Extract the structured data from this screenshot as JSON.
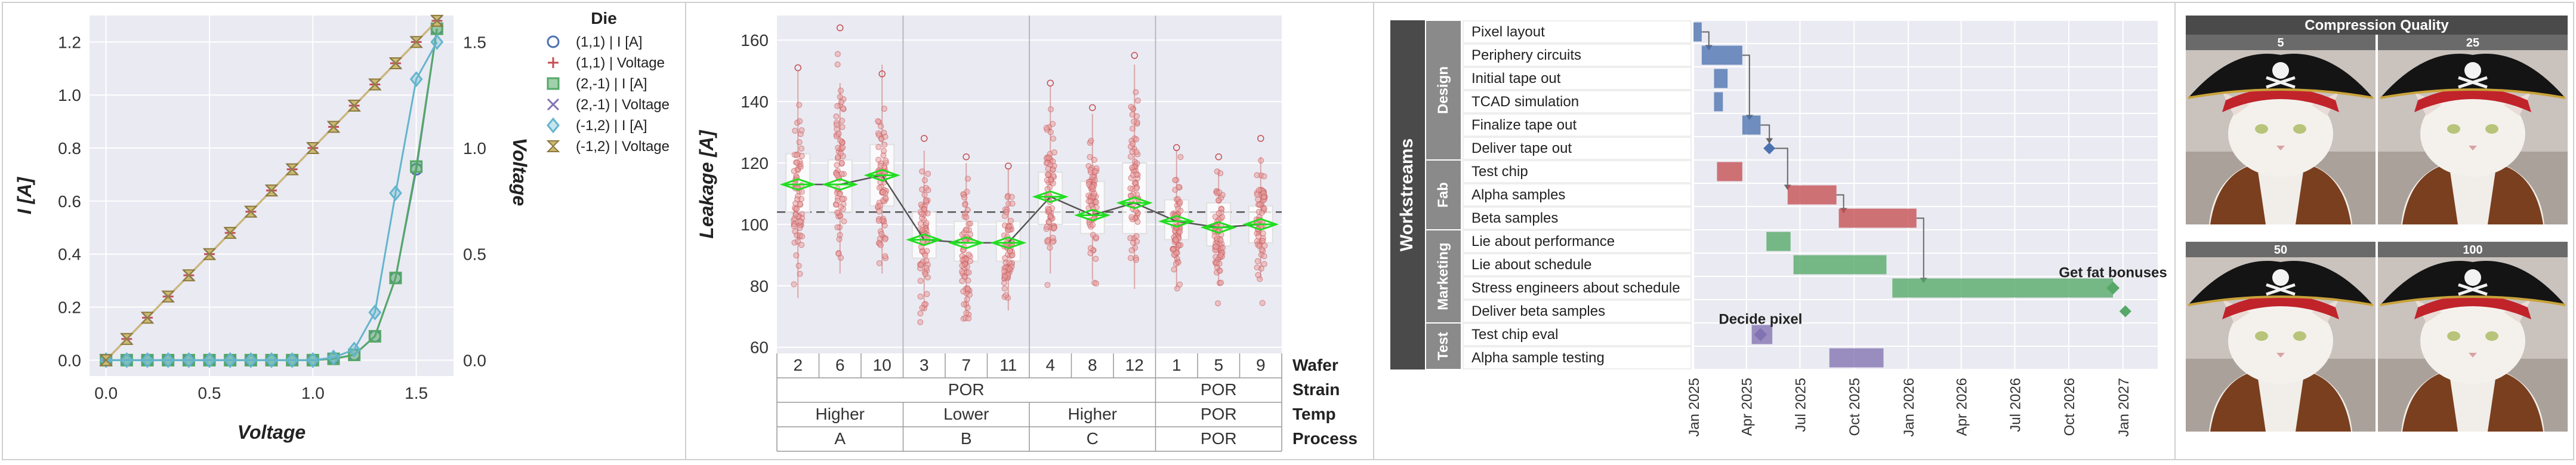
{
  "chart_data": [
    {
      "type": "line",
      "title": "",
      "xlabel": "Voltage",
      "ylabel": "I [A]",
      "y2label": "Voltage",
      "xlim": [
        -0.08,
        1.68
      ],
      "ylim": [
        -0.06,
        1.3
      ],
      "y2lim": [
        -0.075,
        1.625
      ],
      "xticks": [
        "0.0",
        "0.5",
        "1.0",
        "1.5"
      ],
      "yticks": [
        "0.0",
        "0.2",
        "0.4",
        "0.6",
        "0.8",
        "1.0",
        "1.2"
      ],
      "y2ticks": [
        "0.0",
        "0.5",
        "1.0",
        "1.5"
      ],
      "legend_title": "Die",
      "legend_position": "outside-right",
      "x": [
        0,
        0.1,
        0.2,
        0.3,
        0.4,
        0.5,
        0.6,
        0.7,
        0.8,
        0.9,
        1.0,
        1.1,
        1.2,
        1.3,
        1.4,
        1.5,
        1.6
      ],
      "series": [
        {
          "name": "(1,1) | I [A]",
          "axis": "left",
          "marker": "circle",
          "color": "#4c72b0",
          "values": [
            0,
            0,
            0,
            0,
            0,
            0,
            0,
            0,
            0,
            0,
            0,
            0.005,
            0.02,
            0.09,
            0.31,
            0.72,
            1.25
          ]
        },
        {
          "name": "(1,1) | Voltage",
          "axis": "right",
          "marker": "plus",
          "color": "#c44e52",
          "values": [
            0,
            0.1,
            0.2,
            0.3,
            0.4,
            0.5,
            0.6,
            0.7,
            0.8,
            0.9,
            1.0,
            1.1,
            1.2,
            1.3,
            1.4,
            1.5,
            1.6
          ]
        },
        {
          "name": "(2,-1) | I [A]",
          "axis": "left",
          "marker": "square",
          "color": "#55a868",
          "values": [
            0,
            0,
            0,
            0,
            0,
            0,
            0,
            0,
            0,
            0,
            0,
            0.005,
            0.02,
            0.09,
            0.31,
            0.73,
            1.25
          ]
        },
        {
          "name": "(2,-1) | Voltage",
          "axis": "right",
          "marker": "x",
          "color": "#8172b2",
          "values": [
            0,
            0.1,
            0.2,
            0.3,
            0.4,
            0.5,
            0.6,
            0.7,
            0.8,
            0.9,
            1.0,
            1.1,
            1.2,
            1.3,
            1.4,
            1.5,
            1.6
          ]
        },
        {
          "name": "(-1,2) | I [A]",
          "axis": "left",
          "marker": "diamond",
          "color": "#64b5cd",
          "values": [
            0,
            0,
            0,
            0,
            0,
            0,
            0,
            0,
            0,
            0,
            0,
            0.01,
            0.04,
            0.18,
            0.63,
            1.06,
            1.2
          ]
        },
        {
          "name": "(-1,2) | Voltage",
          "axis": "right",
          "marker": "hourglass",
          "color": "#ccb974",
          "values": [
            0,
            0.1,
            0.2,
            0.3,
            0.4,
            0.5,
            0.6,
            0.7,
            0.8,
            0.9,
            1.0,
            1.1,
            1.2,
            1.3,
            1.4,
            1.5,
            1.6
          ]
        }
      ]
    },
    {
      "type": "scatter",
      "title": "",
      "ylabel": "Leakage [A]",
      "ylim": [
        58,
        168
      ],
      "yticks": [
        "60",
        "80",
        "100",
        "120",
        "140",
        "160"
      ],
      "reference_line": 104,
      "categories": [
        "2",
        "6",
        "10",
        "3",
        "7",
        "11",
        "4",
        "8",
        "12",
        "1",
        "5",
        "9"
      ],
      "means": [
        113,
        113,
        116,
        95,
        94,
        94,
        109,
        103,
        107,
        101,
        99,
        100
      ],
      "q1": [
        104,
        104,
        106,
        89,
        88,
        88,
        100,
        97,
        97,
        95,
        93,
        94
      ],
      "q3": [
        123,
        121,
        126,
        104,
        101,
        101,
        117,
        114,
        120,
        108,
        107,
        106
      ],
      "whisker_low": [
        76,
        84,
        84,
        72,
        71,
        72,
        84,
        82,
        79,
        79,
        80,
        82
      ],
      "whisker_high": [
        150,
        146,
        152,
        124,
        120,
        118,
        145,
        136,
        152,
        124,
        118,
        122
      ],
      "min": [
        73,
        80,
        74,
        63,
        61,
        64,
        76,
        77,
        76,
        72,
        72,
        73
      ],
      "max": [
        151,
        164,
        149,
        128,
        122,
        119,
        146,
        138,
        155,
        125,
        122,
        128
      ],
      "group_rows": [
        {
          "label": "Wafer",
          "cells": [
            {
              "text": "2",
              "span": 1
            },
            {
              "text": "6",
              "span": 1
            },
            {
              "text": "10",
              "span": 1
            },
            {
              "text": "3",
              "span": 1
            },
            {
              "text": "7",
              "span": 1
            },
            {
              "text": "11",
              "span": 1
            },
            {
              "text": "4",
              "span": 1
            },
            {
              "text": "8",
              "span": 1
            },
            {
              "text": "12",
              "span": 1
            },
            {
              "text": "1",
              "span": 1
            },
            {
              "text": "5",
              "span": 1
            },
            {
              "text": "9",
              "span": 1
            }
          ]
        },
        {
          "label": "Strain",
          "cells": [
            {
              "text": "POR",
              "span": 9
            },
            {
              "text": "POR",
              "span": 3
            }
          ]
        },
        {
          "label": "Temp",
          "cells": [
            {
              "text": "Higher",
              "span": 3
            },
            {
              "text": "Lower",
              "span": 3
            },
            {
              "text": "Higher",
              "span": 3
            },
            {
              "text": "POR",
              "span": 3
            }
          ]
        },
        {
          "label": "Process",
          "cells": [
            {
              "text": "A",
              "span": 3
            },
            {
              "text": "B",
              "span": 3
            },
            {
              "text": "C",
              "span": 3
            },
            {
              "text": "POR",
              "span": 3
            }
          ]
        }
      ]
    },
    {
      "type": "gantt",
      "title": "",
      "ylabel": "Workstreams",
      "xlim": [
        "2025-01-01",
        "2027-03-01"
      ],
      "xticks": [
        "Jan 2025",
        "Apr 2025",
        "Jul 2025",
        "Oct 2025",
        "Jan 2026",
        "Apr 2026",
        "Jul 2026",
        "Oct 2026",
        "Jan 2027"
      ],
      "xtick_dates": [
        "2025-01-01",
        "2025-04-01",
        "2025-07-01",
        "2025-10-01",
        "2026-01-01",
        "2026-04-01",
        "2026-07-01",
        "2026-10-01",
        "2027-01-01"
      ],
      "groups": [
        {
          "name": "Design",
          "rows": 6
        },
        {
          "name": "Fab",
          "rows": 3
        },
        {
          "name": "Marketing",
          "rows": 4
        },
        {
          "name": "Test",
          "rows": 2
        }
      ],
      "tasks": [
        {
          "name": "Pixel layout",
          "start": "2025-01-01",
          "end": "2025-01-15",
          "color": "#4c72b0"
        },
        {
          "name": "Periphery circuits",
          "start": "2025-01-15",
          "end": "2025-03-25",
          "color": "#4c72b0"
        },
        {
          "name": "Initial tape out",
          "start": "2025-02-05",
          "end": "2025-02-28",
          "color": "#4c72b0"
        },
        {
          "name": "TCAD simulation",
          "start": "2025-02-05",
          "end": "2025-02-20",
          "color": "#4c72b0"
        },
        {
          "name": "Finalize tape out",
          "start": "2025-03-25",
          "end": "2025-04-25",
          "color": "#4c72b0"
        },
        {
          "name": "Deliver tape out",
          "start": "2025-05-10",
          "end": "2025-05-10",
          "milestone": true,
          "color": "#4c72b0"
        },
        {
          "name": "Test chip",
          "start": "2025-02-10",
          "end": "2025-03-25",
          "color": "#c44e52"
        },
        {
          "name": "Alpha samples",
          "start": "2025-06-10",
          "end": "2025-09-01",
          "color": "#c44e52"
        },
        {
          "name": "Beta samples",
          "start": "2025-09-05",
          "end": "2026-01-15",
          "color": "#c44e52"
        },
        {
          "name": "Lie about performance",
          "start": "2025-05-05",
          "end": "2025-06-15",
          "color": "#55a868"
        },
        {
          "name": "Lie about schedule",
          "start": "2025-06-20",
          "end": "2025-11-25",
          "color": "#55a868"
        },
        {
          "name": "Stress engineers about schedule",
          "start": "2025-12-05",
          "end": "2026-12-15",
          "color": "#55a868"
        },
        {
          "name": "Deliver beta samples",
          "start": "2027-01-05",
          "end": "2027-01-05",
          "milestone": true,
          "color": "#55a868"
        },
        {
          "name": "Test chip eval",
          "start": "2025-04-10",
          "end": "2025-05-15",
          "color": "#8172b2"
        },
        {
          "name": "Alpha sample testing",
          "start": "2025-08-20",
          "end": "2025-11-20",
          "color": "#8172b2"
        }
      ],
      "annotations": [
        {
          "text": "Decide pixel",
          "date": "2025-04-25",
          "row": 13
        },
        {
          "text": "Get fat bonuses",
          "date": "2026-12-15",
          "row": 11
        }
      ],
      "dependencies": [
        [
          0,
          1
        ],
        [
          1,
          4
        ],
        [
          4,
          5
        ],
        [
          5,
          7
        ],
        [
          7,
          8
        ],
        [
          8,
          11
        ]
      ]
    }
  ],
  "image_grid": {
    "title": "Compression Quality",
    "subject": "white cat wearing a pirate hat with skull and crossbones and a vest",
    "labels": [
      "5",
      "25",
      "50",
      "100"
    ]
  },
  "colors": {
    "axes_bg": "#eaeaf2",
    "grid": "#ffffff",
    "blue": "#4c72b0",
    "red": "#c44e52",
    "green": "#55a868",
    "purple": "#8172b2",
    "cyan": "#64b5cd",
    "tan": "#ccb974",
    "dark_header": "#4a4a4a"
  }
}
